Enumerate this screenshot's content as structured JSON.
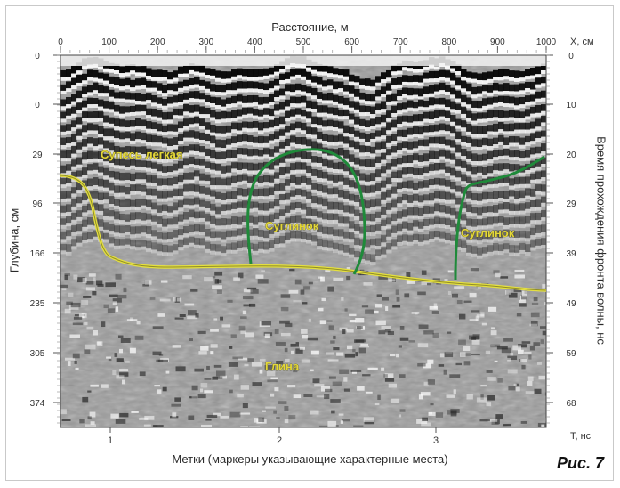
{
  "axes": {
    "top": {
      "title": "Расстояние, м",
      "unit": "X, см",
      "ticks": [
        "0",
        "100",
        "200",
        "300",
        "400",
        "500",
        "600",
        "700",
        "800",
        "900",
        "1000"
      ]
    },
    "left": {
      "title": "Глубина, см",
      "ticks": [
        "0",
        "0",
        "29",
        "96",
        "166",
        "235",
        "305",
        "374"
      ]
    },
    "right": {
      "title": "Время прохождения фронта волны, нс",
      "unit": "T, нс",
      "ticks": [
        "0",
        "10",
        "20",
        "29",
        "39",
        "49",
        "59",
        "68"
      ]
    },
    "bottom": {
      "title": "Метки (маркеры указывающие характерные места)",
      "ticks": [
        "1",
        "2",
        "3"
      ]
    }
  },
  "layers": {
    "sandy_loam": "Супесь легкая",
    "loam_1": "Суглинок",
    "loam_2": "Суглинок",
    "clay": "Глина"
  },
  "figure_label": "Рис. 7",
  "colors": {
    "boundary_yellow": "#d8d23a",
    "boundary_green": "#1f8a3a",
    "label_yellow": "#e3d73a"
  }
}
